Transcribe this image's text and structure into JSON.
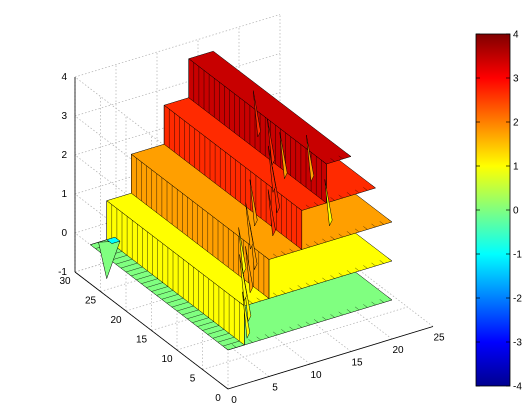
{
  "chart_data": {
    "type": "surface",
    "title": "",
    "xlabel": "",
    "ylabel": "",
    "zlabel": "",
    "xlim": [
      0,
      25
    ],
    "ylim": [
      0,
      30
    ],
    "zlim": [
      -1,
      4
    ],
    "x_ticks": [
      0,
      5,
      10,
      15,
      20,
      25
    ],
    "y_ticks": [
      0,
      5,
      10,
      15,
      20,
      25,
      30
    ],
    "z_ticks": [
      -1,
      0,
      1,
      2,
      3,
      4
    ],
    "grid": true,
    "colormap": "jet",
    "colorbar": {
      "position": "right",
      "range": [
        -4,
        4
      ],
      "ticks": [
        -4,
        -3,
        -2,
        -1,
        0,
        1,
        2,
        3,
        4
      ]
    },
    "levels": [
      {
        "name": "",
        "z": 0,
        "y_range": [
          0,
          27
        ],
        "x_range": [
          0,
          20
        ],
        "color": "#80ff80"
      },
      {
        "name": "",
        "z": 1,
        "y_range": [
          0,
          27
        ],
        "x_range": [
          2,
          20
        ],
        "color": "#ffff00"
      },
      {
        "name": "",
        "z": 2,
        "y_range": [
          0,
          27
        ],
        "x_range": [
          5,
          20
        ],
        "color": "#ff9f00"
      },
      {
        "name": "",
        "z": 3,
        "y_range": [
          0,
          27
        ],
        "x_range": [
          9,
          18
        ],
        "color": "#ff2a00"
      },
      {
        "name": "",
        "z": 4,
        "y_range": [
          0,
          27
        ],
        "x_range": [
          12,
          15
        ],
        "color": "#c80000"
      }
    ],
    "spikes": [
      {
        "x": 3,
        "y": 2,
        "z": 1,
        "color": "#ffff00"
      },
      {
        "x": 5,
        "y": 5,
        "z": 1,
        "color": "#ffff00"
      },
      {
        "x": 7,
        "y": 9,
        "z": 1,
        "color": "#ffff00"
      },
      {
        "x": 10,
        "y": 14,
        "z": 1,
        "color": "#ffff00"
      },
      {
        "x": 4,
        "y": 3,
        "z": 2,
        "color": "#ff9f00"
      },
      {
        "x": 7,
        "y": 7,
        "z": 2,
        "color": "#ff9f00"
      },
      {
        "x": 9,
        "y": 11,
        "z": 2,
        "color": "#ff9f00"
      },
      {
        "x": 12,
        "y": 15,
        "z": 2,
        "color": "#ff9f00"
      },
      {
        "x": 8,
        "y": 5,
        "z": 3,
        "color": "#ff2a00"
      },
      {
        "x": 11,
        "y": 9,
        "z": 3,
        "color": "#ff2a00"
      },
      {
        "x": 13,
        "y": 13,
        "z": 3,
        "color": "#ff2a00"
      },
      {
        "x": 16,
        "y": 18,
        "z": 3,
        "color": "#ff2a00"
      },
      {
        "x": 18,
        "y": 24,
        "z": 3,
        "color": "#ff2a00"
      },
      {
        "x": 20,
        "y": 22,
        "z": 2,
        "color": "#ff9f00"
      },
      {
        "x": 22,
        "y": 20,
        "z": 2,
        "color": "#ff9f00"
      },
      {
        "x": 23,
        "y": 18,
        "z": 1,
        "color": "#ffff00"
      }
    ],
    "low_point": {
      "x": 2,
      "y": 27,
      "z": -1,
      "color": "#80ff80"
    },
    "cyan_cell": {
      "x": 2,
      "y": 26,
      "z": 0,
      "color": "#00ffff"
    }
  }
}
